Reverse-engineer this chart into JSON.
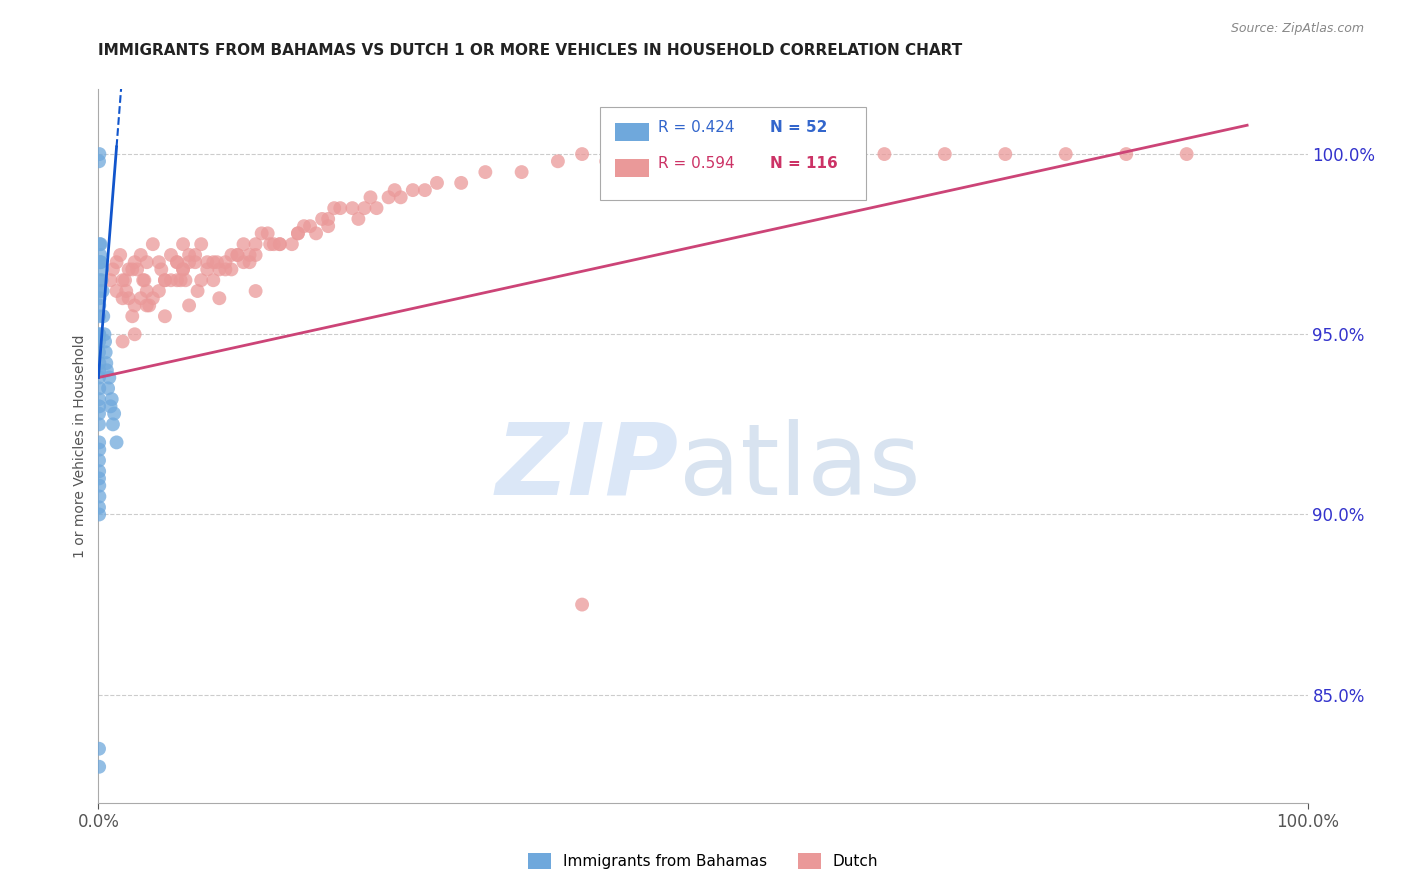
{
  "title": "IMMIGRANTS FROM BAHAMAS VS DUTCH 1 OR MORE VEHICLES IN HOUSEHOLD CORRELATION CHART",
  "source": "Source: ZipAtlas.com",
  "ylabel_left": "1 or more Vehicles in Household",
  "right_yticks": [
    85.0,
    90.0,
    95.0,
    100.0
  ],
  "right_ytick_labels": [
    "85.0%",
    "90.0%",
    "95.0%",
    "100.0%"
  ],
  "xmin": 0.0,
  "xmax": 100.0,
  "ymin": 82.0,
  "ymax": 101.8,
  "legend_labels": [
    "Immigrants from Bahamas",
    "Dutch"
  ],
  "legend_r_blue": "R = 0.424",
  "legend_n_blue": "N = 52",
  "legend_r_pink": "R = 0.594",
  "legend_n_pink": "N = 116",
  "blue_color": "#6fa8dc",
  "pink_color": "#ea9999",
  "blue_line_color": "#1155cc",
  "pink_line_color": "#cc4477",
  "grid_color": "#cccccc",
  "blue_scatter_x": [
    0.05,
    0.08,
    0.1,
    0.12,
    0.05,
    0.07,
    0.1,
    0.15,
    0.06,
    0.09,
    0.05,
    0.06,
    0.07,
    0.08,
    0.05,
    0.06,
    0.07,
    0.05,
    0.06,
    0.05,
    0.05,
    0.06,
    0.07,
    0.05,
    0.06,
    0.05,
    0.07,
    0.08,
    0.05,
    0.06,
    0.12,
    0.15,
    0.18,
    0.2,
    0.25,
    0.3,
    0.35,
    0.4,
    0.5,
    0.6,
    0.7,
    0.8,
    1.0,
    1.2,
    1.5,
    0.9,
    1.1,
    1.3,
    0.55,
    0.65,
    0.05,
    0.06
  ],
  "blue_scatter_y": [
    99.8,
    100.0,
    97.5,
    97.0,
    95.5,
    95.8,
    96.2,
    97.2,
    95.0,
    96.0,
    94.5,
    94.8,
    95.0,
    94.2,
    93.8,
    94.0,
    93.5,
    93.2,
    93.0,
    92.8,
    92.5,
    92.0,
    91.8,
    91.5,
    91.2,
    91.0,
    90.8,
    90.5,
    90.2,
    90.0,
    96.5,
    97.0,
    97.5,
    97.0,
    96.5,
    96.8,
    96.2,
    95.5,
    95.0,
    94.5,
    94.0,
    93.5,
    93.0,
    92.5,
    92.0,
    93.8,
    93.2,
    92.8,
    94.8,
    94.2,
    83.5,
    83.0
  ],
  "pink_scatter_x": [
    1.0,
    1.5,
    2.0,
    2.5,
    1.8,
    2.2,
    3.0,
    2.8,
    1.5,
    2.0,
    3.5,
    4.0,
    3.2,
    4.5,
    3.8,
    2.5,
    3.0,
    4.0,
    2.8,
    3.5,
    5.0,
    6.0,
    5.5,
    7.0,
    6.5,
    4.5,
    5.5,
    6.5,
    4.0,
    5.0,
    7.5,
    8.0,
    7.0,
    8.5,
    9.0,
    6.0,
    7.0,
    8.0,
    6.5,
    7.5,
    10.0,
    9.5,
    11.0,
    10.5,
    12.0,
    8.5,
    9.0,
    10.5,
    11.5,
    9.5,
    13.0,
    14.0,
    12.5,
    15.0,
    13.5,
    12.0,
    11.0,
    14.5,
    13.0,
    12.5,
    17.0,
    18.0,
    16.0,
    19.0,
    20.0,
    15.0,
    17.5,
    18.5,
    16.5,
    19.5,
    22.0,
    25.0,
    23.0,
    27.0,
    24.0,
    21.0,
    26.0,
    28.0,
    22.5,
    24.5,
    30.0,
    32.0,
    35.0,
    38.0,
    40.0,
    42.0,
    45.0,
    50.0,
    55.0,
    60.0,
    65.0,
    70.0,
    75.0,
    80.0,
    85.0,
    90.0,
    1.2,
    2.3,
    3.7,
    5.2,
    7.2,
    9.8,
    11.5,
    14.2,
    16.5,
    19.0,
    21.5,
    4.2,
    6.8,
    8.2,
    2.0,
    3.0,
    5.5,
    7.5,
    10.0,
    13.0
  ],
  "pink_scatter_y": [
    96.5,
    97.0,
    96.0,
    96.8,
    97.2,
    96.5,
    97.0,
    96.8,
    96.2,
    96.5,
    97.2,
    97.0,
    96.8,
    97.5,
    96.5,
    96.0,
    95.8,
    96.2,
    95.5,
    96.0,
    97.0,
    97.2,
    96.5,
    97.5,
    97.0,
    96.0,
    96.5,
    97.0,
    95.8,
    96.2,
    97.2,
    97.0,
    96.8,
    97.5,
    97.0,
    96.5,
    96.8,
    97.2,
    96.5,
    97.0,
    96.8,
    97.0,
    97.2,
    96.8,
    97.5,
    96.5,
    96.8,
    97.0,
    97.2,
    96.5,
    97.5,
    97.8,
    97.2,
    97.5,
    97.8,
    97.0,
    96.8,
    97.5,
    97.2,
    97.0,
    98.0,
    97.8,
    97.5,
    98.2,
    98.5,
    97.5,
    98.0,
    98.2,
    97.8,
    98.5,
    98.5,
    98.8,
    98.5,
    99.0,
    98.8,
    98.5,
    99.0,
    99.2,
    98.8,
    99.0,
    99.2,
    99.5,
    99.5,
    99.8,
    100.0,
    99.8,
    100.0,
    100.0,
    100.0,
    100.0,
    100.0,
    100.0,
    100.0,
    100.0,
    100.0,
    100.0,
    96.8,
    96.2,
    96.5,
    96.8,
    96.5,
    97.0,
    97.2,
    97.5,
    97.8,
    98.0,
    98.2,
    95.8,
    96.5,
    96.2,
    94.8,
    95.0,
    95.5,
    95.8,
    96.0,
    96.2
  ],
  "pink_outlier_x": [
    40.0
  ],
  "pink_outlier_y": [
    87.5
  ],
  "blue_line_x": [
    0.0,
    1.5,
    2.5
  ],
  "blue_line_y": [
    93.8,
    100.2,
    104.5
  ],
  "blue_line_solid_end": 1.5,
  "pink_line_x0": 0.0,
  "pink_line_y0": 93.8,
  "pink_line_x1": 95.0,
  "pink_line_y1": 100.8
}
